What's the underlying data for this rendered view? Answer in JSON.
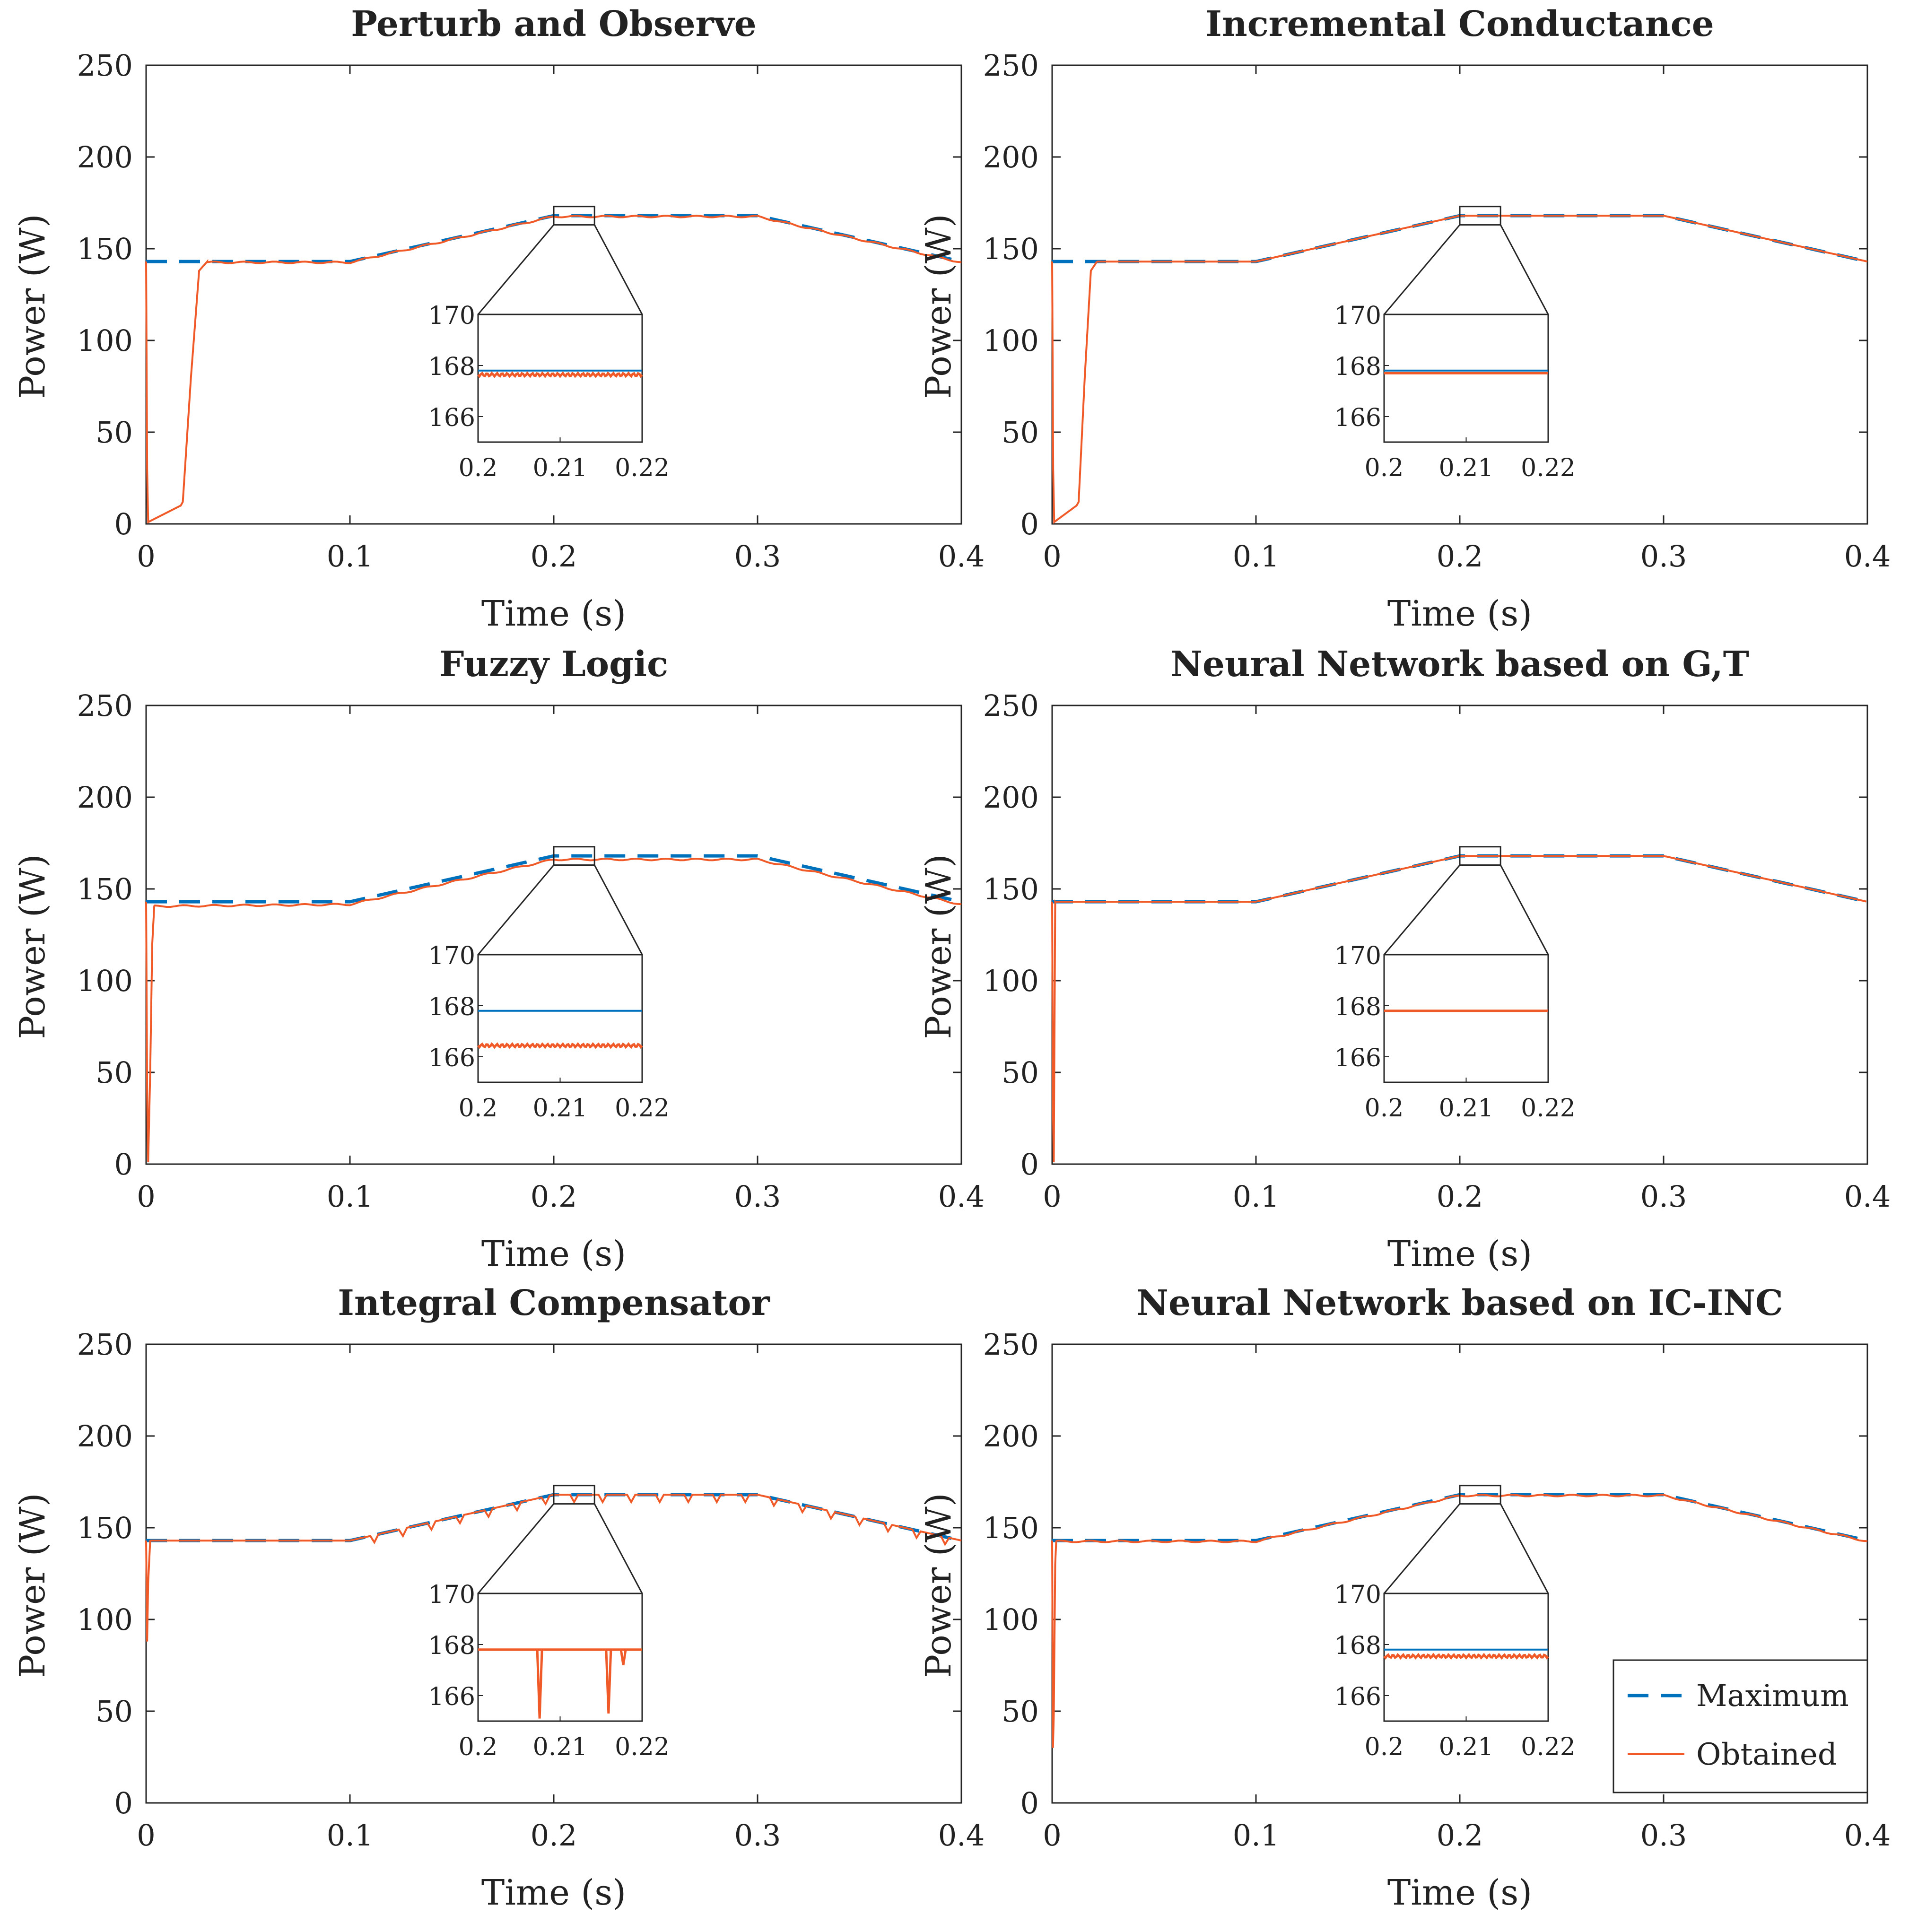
{
  "colors": {
    "maximum": "#0072BD",
    "obtained": "#F05A28",
    "axis": "#262626",
    "background": "#ffffff"
  },
  "legend": {
    "location": "bottom-right of last panel",
    "entries": [
      {
        "label": "Maximum",
        "style": "dashed",
        "color": "#0072BD"
      },
      {
        "label": "Obtained",
        "style": "solid",
        "color": "#F05A28"
      }
    ]
  },
  "chart_data": [
    {
      "type": "line",
      "title": "Perturb and Observe",
      "xlabel": "Time (s)",
      "ylabel": "Power (W)",
      "xlim": [
        0,
        0.4
      ],
      "ylim": [
        0,
        250
      ],
      "xticks": [
        "0",
        "0.1",
        "0.2",
        "0.3",
        "0.4"
      ],
      "yticks": [
        "0",
        "50",
        "100",
        "150",
        "200",
        "250"
      ],
      "series": [
        {
          "name": "Maximum",
          "x": [
            0,
            0.1,
            0.2,
            0.3,
            0.4
          ],
          "y": [
            143,
            143,
            168,
            168,
            143
          ]
        },
        {
          "name": "Obtained",
          "x": [
            0,
            0.0005,
            0.001,
            0.017,
            0.018,
            0.022,
            0.026,
            0.03,
            0.1,
            0.2,
            0.3,
            0.4
          ],
          "y": [
            143,
            30,
            1,
            10,
            12,
            80,
            138,
            143,
            143,
            168,
            168,
            143
          ]
        }
      ],
      "inset": {
        "xlim": [
          0.2,
          0.22
        ],
        "ylim": [
          165,
          170
        ],
        "xticks": [
          "0.2",
          "0.21",
          "0.22"
        ],
        "yticks": [
          "166",
          "168",
          "170"
        ],
        "maximum": 167.8,
        "obtained": 167.7,
        "ripple": "small",
        "dips": []
      }
    },
    {
      "type": "line",
      "title": "Incremental Conductance",
      "xlabel": "Time (s)",
      "ylabel": "Power (W)",
      "xlim": [
        0,
        0.4
      ],
      "ylim": [
        0,
        250
      ],
      "xticks": [
        "0",
        "0.1",
        "0.2",
        "0.3",
        "0.4"
      ],
      "yticks": [
        "0",
        "50",
        "100",
        "150",
        "200",
        "250"
      ],
      "series": [
        {
          "name": "Maximum",
          "x": [
            0,
            0.1,
            0.2,
            0.3,
            0.4
          ],
          "y": [
            143,
            143,
            168,
            168,
            143
          ]
        },
        {
          "name": "Obtained",
          "x": [
            0,
            0.0005,
            0.001,
            0.012,
            0.013,
            0.016,
            0.019,
            0.022,
            0.1,
            0.2,
            0.3,
            0.4
          ],
          "y": [
            143,
            30,
            1,
            10,
            12,
            80,
            138,
            143,
            143,
            168,
            168,
            143
          ]
        }
      ],
      "inset": {
        "xlim": [
          0.2,
          0.22
        ],
        "ylim": [
          165,
          170
        ],
        "xticks": [
          "0.2",
          "0.21",
          "0.22"
        ],
        "yticks": [
          "166",
          "168",
          "170"
        ],
        "maximum": 167.8,
        "obtained": 167.7,
        "ripple": "none",
        "dips": []
      }
    },
    {
      "type": "line",
      "title": "Fuzzy Logic",
      "xlabel": "Time (s)",
      "ylabel": "Power (W)",
      "xlim": [
        0,
        0.4
      ],
      "ylim": [
        0,
        250
      ],
      "xticks": [
        "0",
        "0.1",
        "0.2",
        "0.3",
        "0.4"
      ],
      "yticks": [
        "0",
        "50",
        "100",
        "150",
        "200",
        "250"
      ],
      "series": [
        {
          "name": "Maximum",
          "x": [
            0,
            0.1,
            0.2,
            0.3,
            0.4
          ],
          "y": [
            143,
            143,
            168,
            168,
            143
          ]
        },
        {
          "name": "Obtained",
          "x": [
            0,
            0.0005,
            0.001,
            0.002,
            0.003,
            0.004,
            0.1,
            0.2,
            0.3,
            0.4
          ],
          "y": [
            143,
            40,
            1,
            50,
            120,
            141,
            142,
            166.5,
            166.5,
            142
          ]
        }
      ],
      "inset": {
        "xlim": [
          0.2,
          0.22
        ],
        "ylim": [
          165,
          170
        ],
        "xticks": [
          "0.2",
          "0.21",
          "0.22"
        ],
        "yticks": [
          "166",
          "168",
          "170"
        ],
        "maximum": 167.8,
        "obtained": 166.5,
        "ripple": "small",
        "dips": []
      }
    },
    {
      "type": "line",
      "title": "Neural Network based on G,T",
      "xlabel": "Time (s)",
      "ylabel": "Power (W)",
      "xlim": [
        0,
        0.4
      ],
      "ylim": [
        0,
        250
      ],
      "xticks": [
        "0",
        "0.1",
        "0.2",
        "0.3",
        "0.4"
      ],
      "yticks": [
        "0",
        "50",
        "100",
        "150",
        "200",
        "250"
      ],
      "series": [
        {
          "name": "Maximum",
          "x": [
            0,
            0.1,
            0.2,
            0.3,
            0.4
          ],
          "y": [
            143,
            143,
            168,
            168,
            143
          ]
        },
        {
          "name": "Obtained",
          "x": [
            0,
            0.0004,
            0.0008,
            0.0015,
            0.1,
            0.2,
            0.3,
            0.4
          ],
          "y": [
            143,
            30,
            1,
            143,
            143,
            168,
            168,
            143
          ]
        }
      ],
      "inset": {
        "xlim": [
          0.2,
          0.22
        ],
        "ylim": [
          165,
          170
        ],
        "xticks": [
          "0.2",
          "0.21",
          "0.22"
        ],
        "yticks": [
          "166",
          "168",
          "170"
        ],
        "maximum": 167.8,
        "obtained": 167.8,
        "ripple": "none",
        "dips": []
      }
    },
    {
      "type": "line",
      "title": "Integral Compensator",
      "xlabel": "Time (s)",
      "ylabel": "Power (W)",
      "xlim": [
        0,
        0.4
      ],
      "ylim": [
        0,
        250
      ],
      "xticks": [
        "0",
        "0.1",
        "0.2",
        "0.3",
        "0.4"
      ],
      "yticks": [
        "0",
        "50",
        "100",
        "150",
        "200",
        "250"
      ],
      "series": [
        {
          "name": "Maximum",
          "x": [
            0,
            0.1,
            0.2,
            0.3,
            0.4
          ],
          "y": [
            143,
            143,
            168,
            168,
            143
          ]
        },
        {
          "name": "Obtained",
          "x": [
            0,
            0.0005,
            0.001,
            0.002,
            0.1,
            0.2,
            0.3,
            0.4
          ],
          "y": [
            143,
            88,
            120,
            143,
            143,
            168,
            168,
            143
          ]
        }
      ],
      "inset": {
        "xlim": [
          0.2,
          0.22
        ],
        "ylim": [
          165,
          170
        ],
        "xticks": [
          "0.2",
          "0.21",
          "0.22"
        ],
        "yticks": [
          "166",
          "168",
          "170"
        ],
        "maximum": 167.8,
        "obtained": 167.8,
        "ripple": "none",
        "dips": [
          {
            "t": 0.2075,
            "min": 165.1
          },
          {
            "t": 0.2159,
            "min": 165.3
          },
          {
            "t": 0.2177,
            "min": 167.2
          }
        ]
      }
    },
    {
      "type": "line",
      "title": "Neural Network based on IC-INC",
      "xlabel": "Time (s)",
      "ylabel": "Power (W)",
      "xlim": [
        0,
        0.4
      ],
      "ylim": [
        0,
        250
      ],
      "xticks": [
        "0",
        "0.1",
        "0.2",
        "0.3",
        "0.4"
      ],
      "yticks": [
        "0",
        "50",
        "100",
        "150",
        "200",
        "250"
      ],
      "series": [
        {
          "name": "Maximum",
          "x": [
            0,
            0.1,
            0.2,
            0.3,
            0.4
          ],
          "y": [
            143,
            143,
            168,
            168,
            143
          ]
        },
        {
          "name": "Obtained",
          "x": [
            0,
            0.0004,
            0.0008,
            0.0015,
            0.002,
            0.1,
            0.2,
            0.3,
            0.4
          ],
          "y": [
            143,
            30,
            48,
            130,
            143,
            143,
            168,
            168,
            143
          ]
        }
      ],
      "inset": {
        "xlim": [
          0.2,
          0.22
        ],
        "ylim": [
          165,
          170
        ],
        "xticks": [
          "0.2",
          "0.21",
          "0.22"
        ],
        "yticks": [
          "166",
          "168",
          "170"
        ],
        "maximum": 167.8,
        "obtained": 167.6,
        "ripple": "small",
        "dips": []
      }
    }
  ]
}
